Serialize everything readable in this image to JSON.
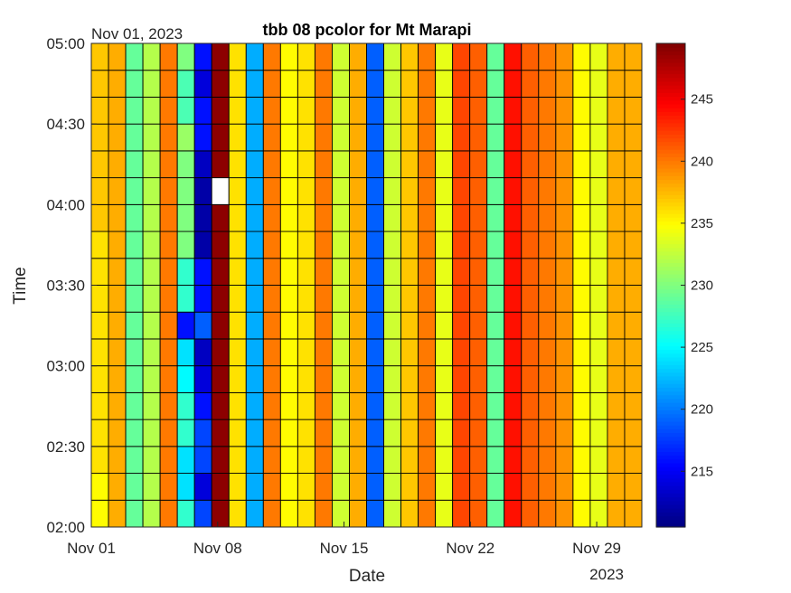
{
  "chart_data": {
    "type": "heatmap",
    "title": "tbb 08 pcolor for Mt Marapi",
    "xlabel": "Date",
    "ylabel": "Time",
    "corner_label": "Nov 01, 2023",
    "year_label": "2023",
    "x_tick_labels": [
      "Nov 01",
      "Nov 08",
      "Nov 15",
      "Nov 22",
      "Nov 29"
    ],
    "x_tick_days": [
      1,
      8,
      15,
      22,
      29
    ],
    "y_tick_labels": [
      "05:00",
      "04:30",
      "04:00",
      "03:30",
      "03:00",
      "02:30",
      "02:00"
    ],
    "y_tick_hours": [
      5.0,
      4.5,
      4.0,
      3.5,
      3.0,
      2.5,
      2.0
    ],
    "x_range_days": [
      1,
      31.5
    ],
    "y_range_hours": [
      2.0,
      5.0
    ],
    "cell_minutes": 10,
    "colormap": "jet",
    "clim": [
      210.5,
      249.5
    ],
    "colorbar_ticks": [
      215,
      220,
      225,
      230,
      235,
      240,
      245
    ],
    "grid": true,
    "column_base_values": [
      236,
      238,
      229,
      232,
      240,
      227,
      214,
      249,
      236,
      222,
      240,
      235,
      236,
      240,
      233,
      238,
      219,
      233,
      237,
      240,
      234,
      242,
      241,
      229,
      244,
      241,
      240,
      239,
      235,
      234,
      238,
      238
    ],
    "column_values_0200_to_0500": [
      [
        235,
        235,
        236,
        236,
        236,
        236,
        236,
        236,
        236,
        236,
        236,
        237,
        237,
        237,
        237,
        237,
        237,
        237
      ],
      [
        238,
        238,
        238,
        238,
        238,
        238,
        238,
        238,
        238,
        238,
        238,
        238,
        238,
        238,
        238,
        238,
        238,
        238
      ],
      [
        229,
        229,
        229,
        229,
        229,
        229,
        229,
        229,
        229,
        229,
        229,
        229,
        229,
        229,
        229,
        229,
        229,
        229
      ],
      [
        232,
        232,
        232,
        232,
        232,
        232,
        232,
        232,
        232,
        232,
        232,
        232,
        232,
        232,
        232,
        232,
        232,
        232
      ],
      [
        240,
        240,
        240,
        240,
        240,
        240,
        240,
        240,
        240,
        240,
        240,
        240,
        240,
        240,
        240,
        240,
        240,
        240
      ],
      [
        227,
        224,
        224,
        227,
        227,
        225,
        224,
        216,
        227,
        227,
        230,
        230,
        230,
        230,
        231,
        228,
        228,
        230
      ],
      [
        218,
        214,
        218,
        218,
        216,
        214,
        213,
        219,
        216,
        216,
        212,
        212,
        212,
        213,
        216,
        216,
        214,
        216
      ],
      [
        249,
        249,
        249,
        249,
        249,
        249,
        249,
        249,
        249,
        249,
        249,
        249,
        null,
        249,
        249,
        249,
        249,
        249
      ],
      [
        236,
        236,
        236,
        236,
        236,
        236,
        236,
        236,
        236,
        236,
        236,
        236,
        236,
        236,
        236,
        236,
        236,
        236
      ],
      [
        222,
        222,
        222,
        222,
        222,
        222,
        222,
        222,
        222,
        222,
        222,
        222,
        222,
        222,
        222,
        222,
        222,
        222
      ],
      [
        240,
        240,
        240,
        240,
        240,
        240,
        240,
        240,
        240,
        240,
        240,
        240,
        240,
        240,
        240,
        240,
        240,
        240
      ],
      [
        235,
        235,
        235,
        235,
        235,
        235,
        235,
        235,
        235,
        235,
        235,
        235,
        235,
        235,
        235,
        235,
        235,
        235
      ],
      [
        236,
        236,
        236,
        236,
        236,
        236,
        236,
        236,
        236,
        236,
        236,
        236,
        236,
        236,
        236,
        236,
        236,
        236
      ],
      [
        240,
        240,
        240,
        240,
        240,
        240,
        240,
        240,
        240,
        240,
        240,
        240,
        240,
        240,
        240,
        240,
        240,
        240
      ],
      [
        233,
        233,
        233,
        233,
        233,
        233,
        233,
        233,
        233,
        233,
        233,
        233,
        233,
        233,
        233,
        233,
        233,
        233
      ],
      [
        238,
        238,
        238,
        238,
        238,
        238,
        238,
        238,
        238,
        238,
        238,
        238,
        238,
        238,
        238,
        238,
        238,
        238
      ],
      [
        219,
        219,
        219,
        219,
        219,
        219,
        219,
        219,
        219,
        219,
        219,
        219,
        219,
        219,
        219,
        219,
        219,
        219
      ],
      [
        233,
        233,
        233,
        233,
        233,
        233,
        233,
        233,
        233,
        233,
        233,
        233,
        233,
        233,
        233,
        233,
        233,
        233
      ],
      [
        237,
        237,
        237,
        237,
        237,
        237,
        237,
        237,
        237,
        237,
        237,
        237,
        237,
        237,
        237,
        237,
        237,
        237
      ],
      [
        240,
        240,
        240,
        240,
        240,
        240,
        240,
        240,
        240,
        240,
        240,
        240,
        240,
        240,
        240,
        240,
        240,
        240
      ],
      [
        234,
        234,
        234,
        234,
        234,
        234,
        234,
        234,
        234,
        234,
        234,
        234,
        234,
        234,
        234,
        234,
        234,
        234
      ],
      [
        242,
        242,
        242,
        242,
        242,
        242,
        242,
        242,
        242,
        242,
        242,
        242,
        242,
        242,
        242,
        242,
        242,
        242
      ],
      [
        241,
        241,
        241,
        241,
        241,
        241,
        241,
        241,
        241,
        241,
        241,
        241,
        241,
        241,
        241,
        241,
        241,
        241
      ],
      [
        229,
        229,
        229,
        229,
        229,
        229,
        229,
        229,
        229,
        229,
        229,
        229,
        229,
        229,
        229,
        229,
        229,
        229
      ],
      [
        244,
        244,
        244,
        244,
        244,
        244,
        244,
        244,
        244,
        244,
        244,
        244,
        244,
        244,
        244,
        244,
        244,
        244
      ],
      [
        241,
        241,
        241,
        241,
        241,
        241,
        241,
        241,
        241,
        241,
        241,
        241,
        241,
        241,
        241,
        241,
        241,
        241
      ],
      [
        240,
        240,
        240,
        240,
        240,
        240,
        240,
        240,
        240,
        240,
        240,
        240,
        240,
        240,
        240,
        240,
        240,
        240
      ],
      [
        239,
        239,
        239,
        239,
        239,
        239,
        239,
        239,
        239,
        239,
        239,
        239,
        239,
        239,
        239,
        239,
        239,
        239
      ],
      [
        235,
        235,
        235,
        235,
        235,
        235,
        235,
        235,
        235,
        235,
        235,
        235,
        235,
        235,
        235,
        235,
        235,
        235
      ],
      [
        234,
        234,
        234,
        234,
        234,
        234,
        234,
        234,
        234,
        234,
        234,
        234,
        234,
        234,
        234,
        234,
        234,
        234
      ],
      [
        238,
        238,
        238,
        238,
        238,
        238,
        238,
        238,
        238,
        238,
        238,
        238,
        238,
        238,
        238,
        238,
        238,
        238
      ],
      [
        238,
        238,
        238,
        238,
        238,
        238,
        238,
        238,
        238,
        238,
        238,
        238,
        238,
        238,
        238,
        238,
        238,
        238
      ]
    ]
  }
}
